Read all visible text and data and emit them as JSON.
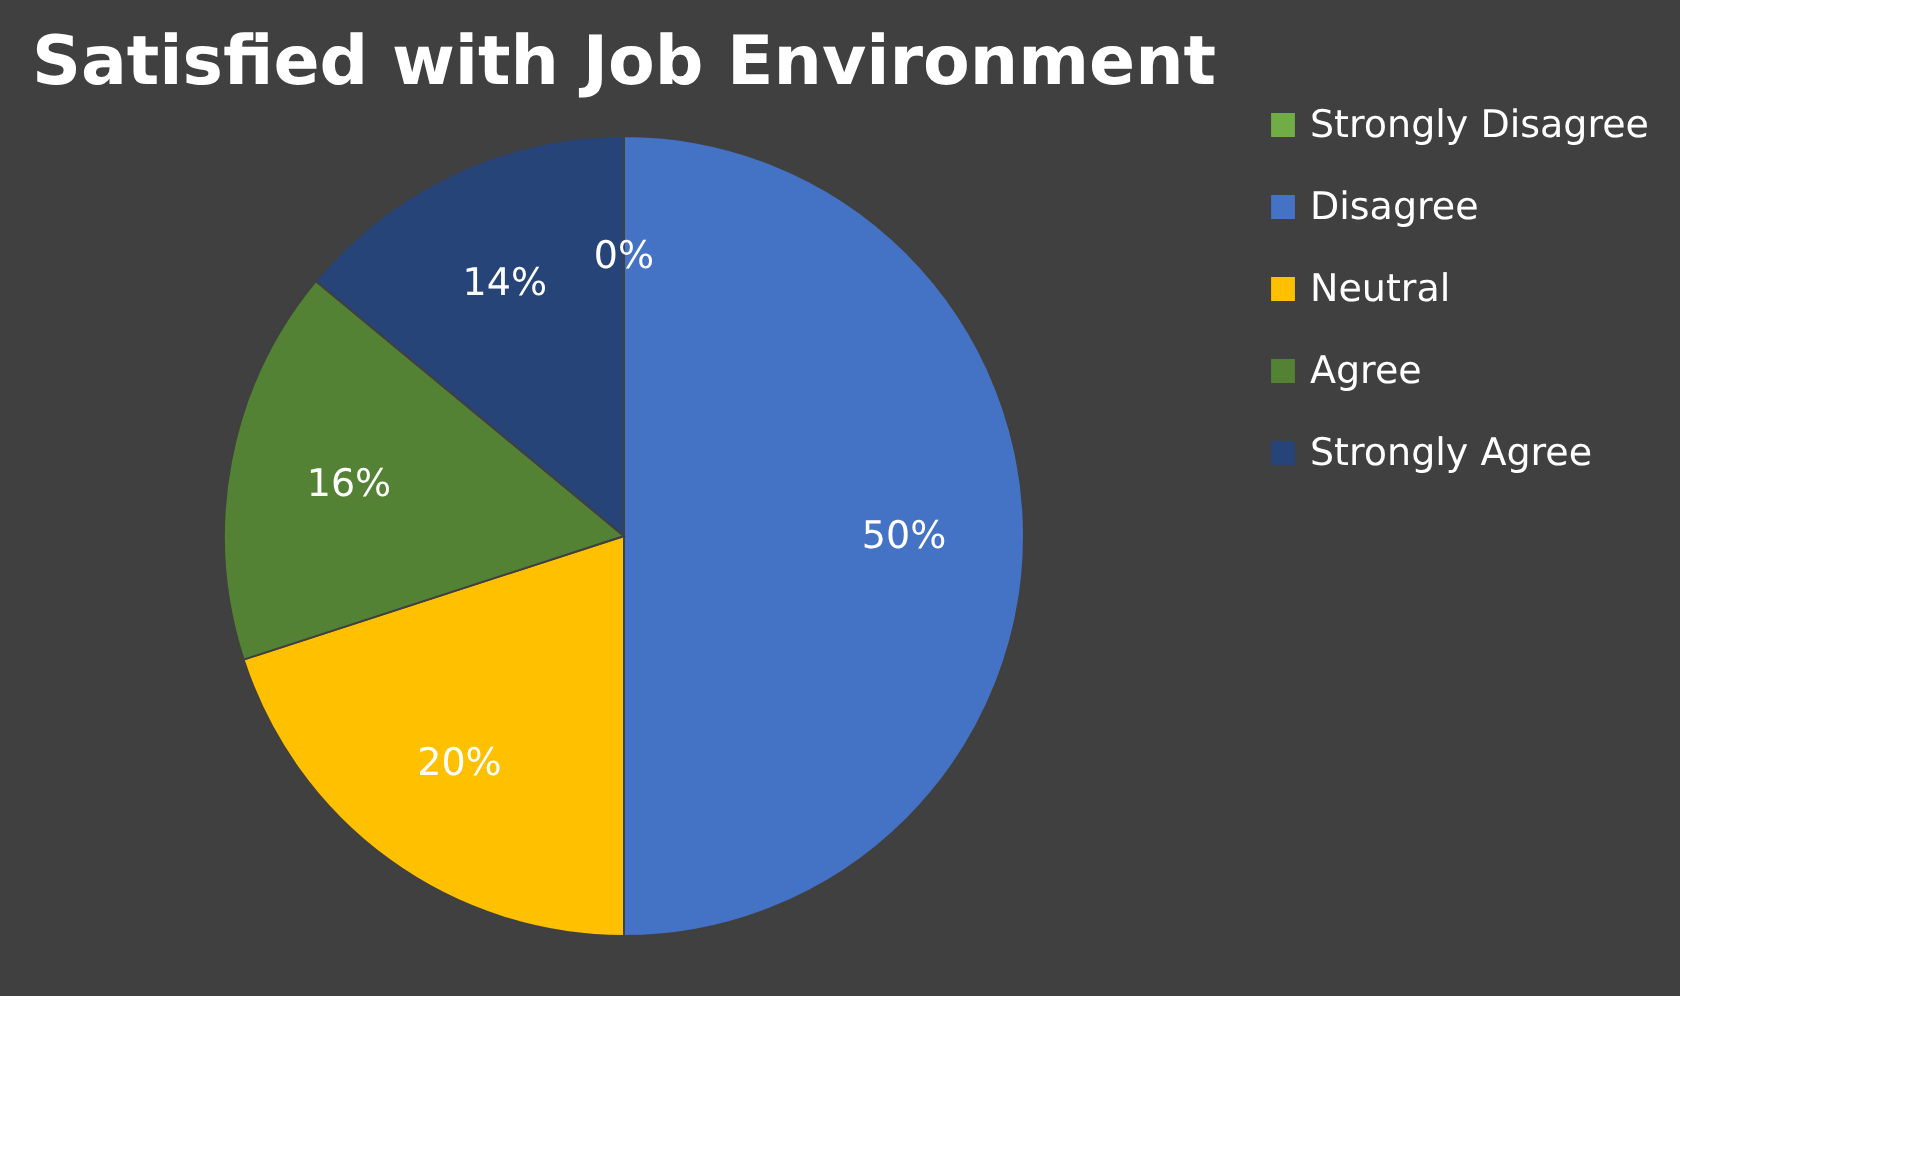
{
  "chart_data": {
    "type": "pie",
    "title": "Satisfied with Job Environment",
    "categories": [
      "Strongly Disagree",
      "Disagree",
      "Neutral",
      "Agree",
      "Strongly Agree"
    ],
    "values": [
      0,
      50,
      20,
      16,
      14
    ],
    "colors": [
      "#70ad47",
      "#4472c4",
      "#ffc000",
      "#548235",
      "#264478"
    ],
    "value_labels": [
      "0%",
      "50%",
      "20%",
      "16%",
      "14%"
    ],
    "legend": "right"
  }
}
